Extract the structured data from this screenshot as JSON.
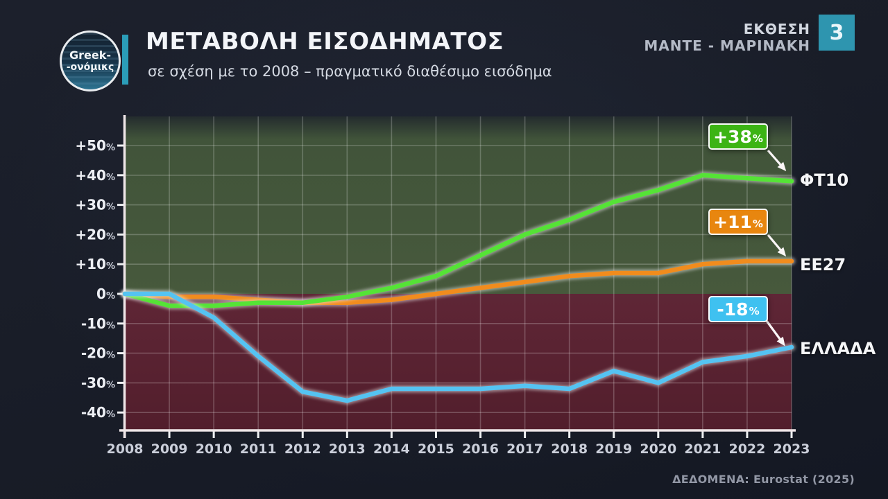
{
  "header": {
    "logo_line1": "Greek-",
    "logo_line2": "-ονόμικς",
    "title": "ΜΕΤΑΒΟΛΗ ΕΙΣΟΔΗΜΑΤΟΣ",
    "subtitle": "σε σχέση με το 2008 – πραγματικό διαθέσιμο εισόδημα",
    "report_line1": "ΕΚΘΕΣΗ",
    "report_line2": "ΜΑΝΤΕ - ΜΑΡΙΝΑΚΗ",
    "badge_number": "3",
    "accent_color": "#2b9db8"
  },
  "footer": {
    "source": "ΔΕΔΟΜΕΝΑ: Eurostat (2025)"
  },
  "chart_data": {
    "type": "line",
    "title": "ΜΕΤΑΒΟΛΗ ΕΙΣΟΔΗΜΑΤΟΣ",
    "subtitle": "σε σχέση με το 2008 – πραγματικό διαθέσιμο εισόδημα",
    "x": [
      2008,
      2009,
      2010,
      2011,
      2012,
      2013,
      2014,
      2015,
      2016,
      2017,
      2018,
      2019,
      2020,
      2021,
      2022,
      2023
    ],
    "ylim": [
      -46,
      60
    ],
    "yticks": [
      50,
      40,
      30,
      20,
      10,
      0,
      -10,
      -20,
      -30,
      -40
    ],
    "ytick_labels": [
      "+50",
      "+40",
      "+30",
      "+20",
      "+10",
      "0",
      "-10",
      "-20",
      "-30",
      "-40"
    ],
    "percent_suffix": "%",
    "grid": true,
    "legend_position": "right-edge-labels",
    "series": [
      {
        "name": "ΦΤ10",
        "color": "#55e336",
        "callout_value": "+38",
        "callout_unit": "%",
        "values": [
          0,
          -4,
          -4,
          -3,
          -3,
          -1,
          2,
          6,
          13,
          20,
          25,
          31,
          35,
          40,
          39,
          38
        ]
      },
      {
        "name": "EE27",
        "color": "#f18c1d",
        "callout_value": "+11",
        "callout_unit": "%",
        "values": [
          0,
          -1,
          -1,
          -2,
          -3,
          -3,
          -2,
          0,
          2,
          4,
          6,
          7,
          7,
          10,
          11,
          11
        ]
      },
      {
        "name": "ΕΛΛΑΔΑ",
        "color": "#55c3f2",
        "callout_value": "-18",
        "callout_unit": "%",
        "values": [
          0,
          0,
          -8,
          -21,
          -33,
          -36,
          -32,
          -32,
          -32,
          -31,
          -32,
          -26,
          -30,
          -23,
          -21,
          -18
        ]
      }
    ],
    "colors": {
      "positive_area": "#47593c",
      "negative_area": "#5c2333",
      "grid": "rgba(255,255,255,0.22)",
      "axis": "#efe6e8"
    }
  }
}
